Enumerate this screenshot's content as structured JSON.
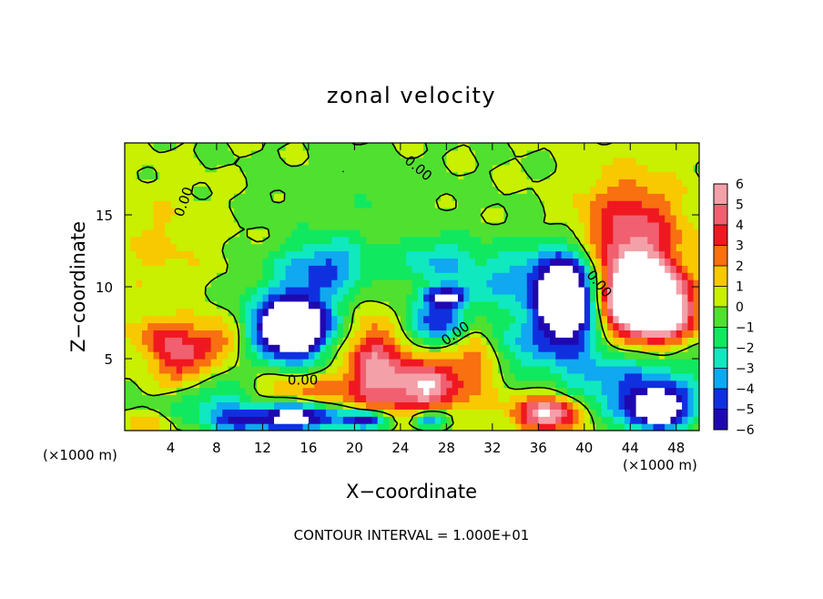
{
  "chart_data": {
    "type": "heatmap",
    "title": "zonal velocity",
    "xlabel": "X−coordinate",
    "ylabel": "Z−coordinate",
    "x_unit_left": "(×1000 m)",
    "x_unit_right": "(×1000 m)",
    "footer": "CONTOUR INTERVAL = 1.000E+01",
    "xlim": [
      0,
      50
    ],
    "ylim": [
      0,
      20
    ],
    "x_ticks": [
      4,
      8,
      12,
      16,
      20,
      24,
      28,
      32,
      36,
      40,
      44,
      48
    ],
    "y_ticks": [
      5,
      10,
      15
    ],
    "colorbar": {
      "levels": [
        6,
        5,
        4,
        3,
        2,
        1,
        0,
        -1,
        -2,
        -3,
        -4,
        -5,
        -6
      ],
      "colors": [
        "#f4a0a8",
        "#f06070",
        "#f01820",
        "#f87010",
        "#f8c800",
        "#c8f000",
        "#50e030",
        "#10e860",
        "#10e8c0",
        "#10a8f0",
        "#1030e0",
        "#2008b0",
        "#6010b0"
      ]
    },
    "contour_labels": [
      {
        "text": "0.00",
        "x": 15.5,
        "y": 3.2,
        "angle": 0
      },
      {
        "text": "0.00",
        "x": 29.0,
        "y": 6.5,
        "angle": -35
      },
      {
        "text": "0.00",
        "x": 41.0,
        "y": 10.0,
        "angle": 50
      },
      {
        "text": "0.00",
        "x": 5.5,
        "y": 15.8,
        "angle": -70
      },
      {
        "text": "0.00",
        "x": 25.3,
        "y": 18.0,
        "angle": 40
      }
    ],
    "field_blobs": [
      {
        "x": 3,
        "y": 13,
        "rx": 5,
        "ry": 4,
        "v": 1.2
      },
      {
        "x": 20,
        "y": 16,
        "rx": 8,
        "ry": 3,
        "v": -0.7
      },
      {
        "x": 44,
        "y": 13,
        "rx": 4.5,
        "ry": 4.5,
        "v": 5
      },
      {
        "x": 44.5,
        "y": 9.5,
        "rx": 3.5,
        "ry": 2.5,
        "v": 8
      },
      {
        "x": 46.5,
        "y": 8.2,
        "rx": 3,
        "ry": 2,
        "v": 7
      },
      {
        "x": 36,
        "y": 10.5,
        "rx": 9,
        "ry": 2.5,
        "v": -3.5
      },
      {
        "x": 38.5,
        "y": 9,
        "rx": 2.5,
        "ry": 3,
        "v": -9
      },
      {
        "x": 17.5,
        "y": 11.5,
        "rx": 4,
        "ry": 1.8,
        "v": -3.8
      },
      {
        "x": 27,
        "y": 12,
        "rx": 3,
        "ry": 1.5,
        "v": -2.2
      },
      {
        "x": 15,
        "y": 7.5,
        "rx": 5,
        "ry": 3,
        "v": -3.5
      },
      {
        "x": 14.5,
        "y": 7.2,
        "rx": 2.8,
        "ry": 2,
        "v": -8
      },
      {
        "x": 27.5,
        "y": 7.5,
        "rx": 3,
        "ry": 1.3,
        "v": -4.5
      },
      {
        "x": 28,
        "y": 9.3,
        "rx": 2,
        "ry": 0.6,
        "v": -6.5
      },
      {
        "x": 33,
        "y": 6,
        "rx": 7,
        "ry": 2,
        "v": -3
      },
      {
        "x": 44,
        "y": 3,
        "rx": 7,
        "ry": 2.5,
        "v": -4
      },
      {
        "x": 5,
        "y": 5,
        "rx": 2.2,
        "ry": 2,
        "v": 4
      },
      {
        "x": 2.5,
        "y": 6.5,
        "rx": 2,
        "ry": 1.5,
        "v": 2.5
      },
      {
        "x": 8,
        "y": 6.5,
        "rx": 2.5,
        "ry": 1.5,
        "v": 3
      },
      {
        "x": 8,
        "y": 2,
        "rx": 4,
        "ry": 1.5,
        "v": -3
      },
      {
        "x": 21.5,
        "y": 5,
        "rx": 2.2,
        "ry": 3.5,
        "v": 4
      },
      {
        "x": 26,
        "y": 3,
        "rx": 3,
        "ry": 2,
        "v": 4.5
      },
      {
        "x": 30.5,
        "y": 6,
        "rx": 2,
        "ry": 2.5,
        "v": 4
      },
      {
        "x": 25,
        "y": 4,
        "rx": 8,
        "ry": 3,
        "v": 2
      },
      {
        "x": 15,
        "y": 2.6,
        "rx": 5,
        "ry": 1.2,
        "v": 2.5
      },
      {
        "x": 15,
        "y": 1,
        "rx": 3.5,
        "ry": 1,
        "v": -8
      },
      {
        "x": 21,
        "y": 0.8,
        "rx": 2,
        "ry": 0.6,
        "v": -8
      },
      {
        "x": 26.5,
        "y": 0.8,
        "rx": 1.5,
        "ry": 0.6,
        "v": -7
      },
      {
        "x": 37,
        "y": 1.3,
        "rx": 3,
        "ry": 1.3,
        "v": 7
      },
      {
        "x": 46.5,
        "y": 1.5,
        "rx": 2.5,
        "ry": 1.3,
        "v": -7
      },
      {
        "x": 2,
        "y": 0.5,
        "rx": 2,
        "ry": 0.7,
        "v": 2
      },
      {
        "x": 10,
        "y": 0.7,
        "rx": 2.5,
        "ry": 0.8,
        "v": -4
      }
    ]
  }
}
